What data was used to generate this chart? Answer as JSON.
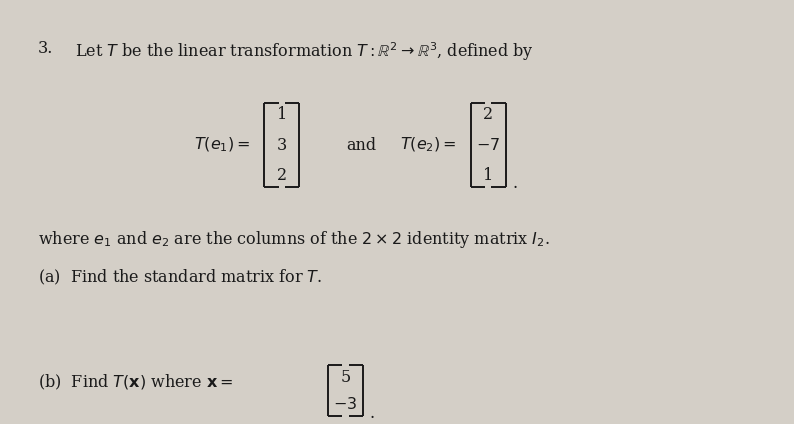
{
  "background_color": "#d4cfc7",
  "text_color": "#1a1a1a",
  "figsize": [
    7.94,
    4.24
  ],
  "dpi": 100,
  "line1_num": "3.",
  "line1_text": "Let $T$ be the linear transformation $T : \\mathbb{R}^2 \\rightarrow \\mathbb{R}^3$, defined by",
  "Te1_label": "$T(e_1) = $",
  "Te1_values": [
    "1",
    "3",
    "2"
  ],
  "and_text": "and",
  "Te2_label": "$T(e_2) = $",
  "Te2_values": [
    "2",
    "$-7$",
    "1"
  ],
  "dot_text": ".",
  "where_text": "where $e_1$ and $e_2$ are the columns of the $2 \\times 2$ identity matrix $I_2$.",
  "part_a_text": "(a)  Find the standard matrix for $T$.",
  "part_b_prefix": "(b)  Find $T(\\mathbf{x})$ where $\\mathbf{x} = $",
  "x_values": [
    "5",
    "$-3$"
  ],
  "dot_b": "."
}
